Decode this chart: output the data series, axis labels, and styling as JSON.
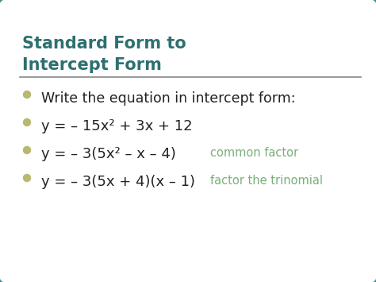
{
  "title_line1": "Standard Form to",
  "title_line2": "Intercept Form",
  "title_color": "#2e7070",
  "bg_outer": "#d0d0d0",
  "bg_card": "#ffffff",
  "border_color": "#4a8a8a",
  "bullet_color": "#b8b870",
  "divider_color": "#888888",
  "text_color": "#222222",
  "annotation_color": "#7ab07a",
  "bullet_items": [
    {
      "text": "Write the equation in intercept form:",
      "annotation": "",
      "is_math": false
    },
    {
      "text": "y = – 15x² + 3x + 12",
      "annotation": "",
      "is_math": true
    },
    {
      "text": "y = – 3(5x² – x – 4)",
      "annotation": "common factor",
      "is_math": true
    },
    {
      "text": "y = – 3(5x + 4)(x – 1)",
      "annotation": "factor the trinomial",
      "is_math": true
    }
  ],
  "figsize": [
    4.74,
    3.55
  ],
  "dpi": 100
}
